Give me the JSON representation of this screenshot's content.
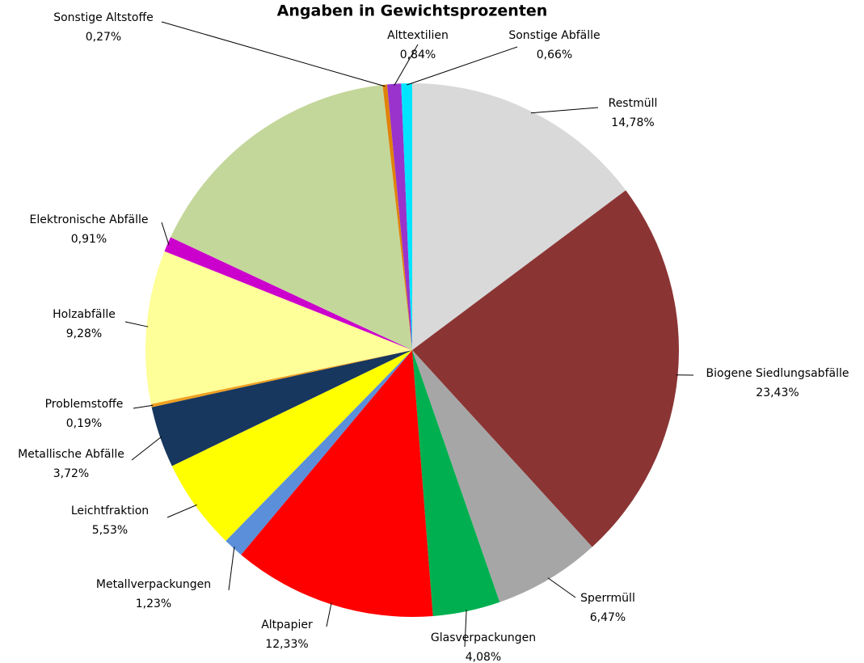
{
  "chart_data": {
    "type": "pie",
    "title": "Angaben in Gewichtsprozenten",
    "categories": [
      "Restmüll",
      "Biogene Siedlungsabfälle",
      "Sperrmüll",
      "Glasverpackungen",
      "Altpapier",
      "Metallverpackungen",
      "Leichtfraktion",
      "Metallische Abfälle",
      "Problemstoffe",
      "Holzabfälle",
      "Elektronische Abfälle",
      null,
      "Sonstige Altstoffe",
      "Alttextilien",
      "Sonstige Abfälle"
    ],
    "values": [
      14.78,
      23.43,
      6.47,
      4.08,
      12.33,
      1.23,
      5.53,
      3.72,
      0.19,
      9.28,
      0.91,
      16.28,
      0.27,
      0.84,
      0.66
    ],
    "value_labels": [
      "14,78%",
      "23,43%",
      "6,47%",
      "4,08%",
      "12,33%",
      "1,23%",
      "5,53%",
      "3,72%",
      "0,19%",
      "9,28%",
      "0,91%",
      null,
      "0,27%",
      "0,84%",
      "0,66%"
    ],
    "colors": [
      "#d9d9d9",
      "#8b3434",
      "#a6a6a6",
      "#00b050",
      "#ff0000",
      "#5b8fd9",
      "#ffff00",
      "#17375e",
      "#f0a020",
      "#ffff99",
      "#cc00cc",
      "#c4d79b",
      "#e0820a",
      "#9933cc",
      "#00e5ff"
    ]
  }
}
